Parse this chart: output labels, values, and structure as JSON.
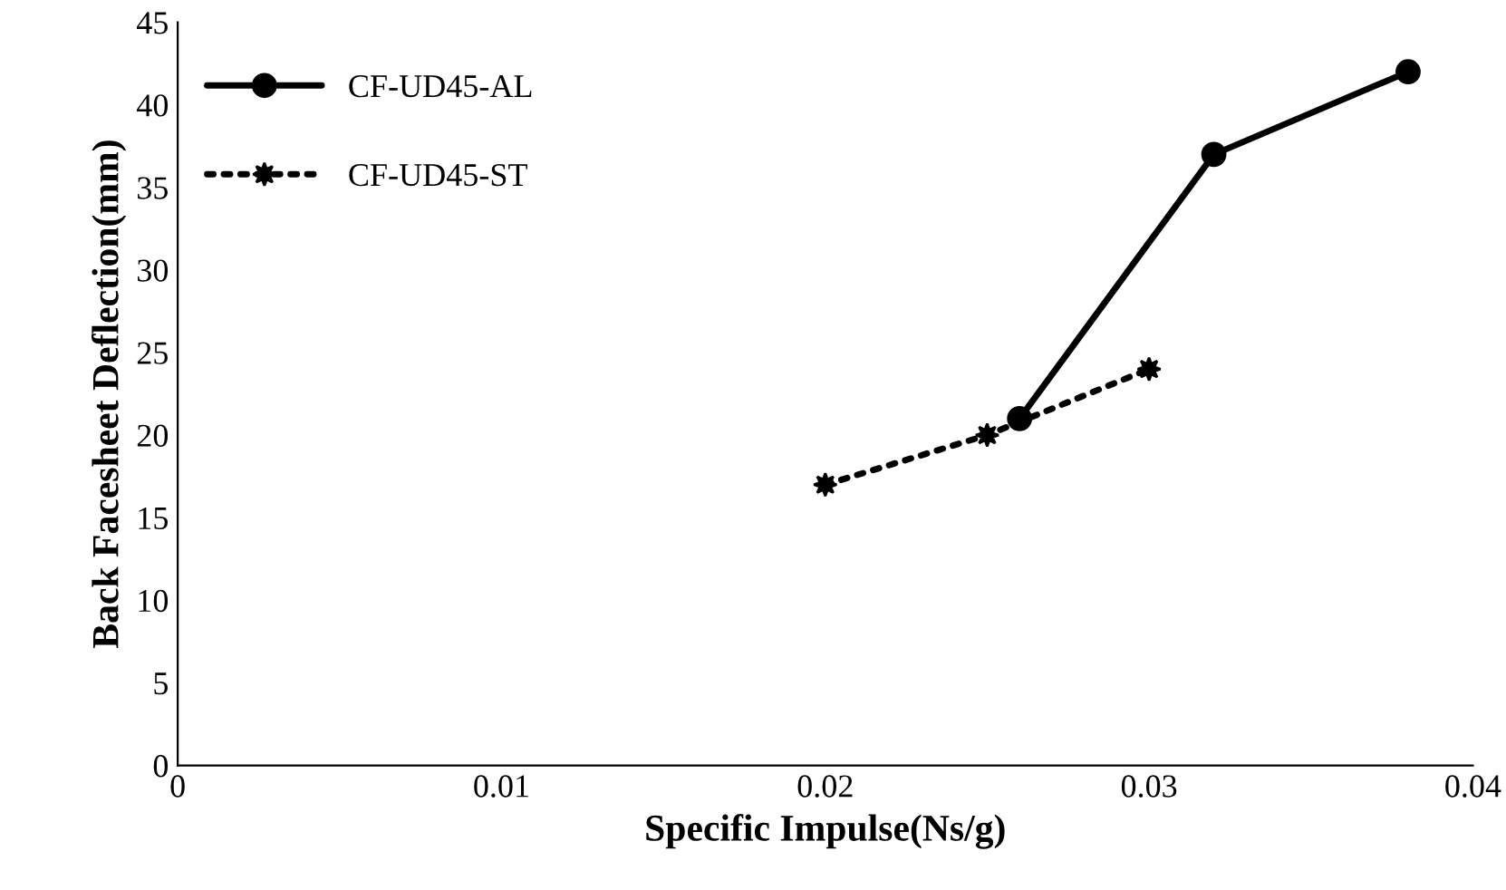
{
  "chart_data": {
    "type": "line",
    "xlabel": "Specific Impulse(Ns/g)",
    "ylabel": "Back Facesheet Deflection(mm)",
    "xlim": [
      0,
      0.04
    ],
    "xticks": [
      0,
      0.01,
      0.02,
      0.03,
      0.04
    ],
    "ylim": [
      0,
      45
    ],
    "yticks": [
      0,
      5,
      10,
      15,
      20,
      25,
      30,
      35,
      40,
      45
    ],
    "grid": false,
    "legend": "top left",
    "series": [
      {
        "name": "CF-UD45-AL",
        "color": "#000000",
        "x": [
          0.026,
          0.032,
          0.038
        ],
        "values": [
          21,
          37,
          42
        ],
        "marker": "circle",
        "line_style": "solid"
      },
      {
        "name": "CF-UD45-ST",
        "color": "#000000",
        "x": [
          0.02,
          0.025,
          0.03
        ],
        "values": [
          17,
          20,
          24
        ],
        "marker": "star",
        "line_style": "dotted"
      }
    ]
  }
}
